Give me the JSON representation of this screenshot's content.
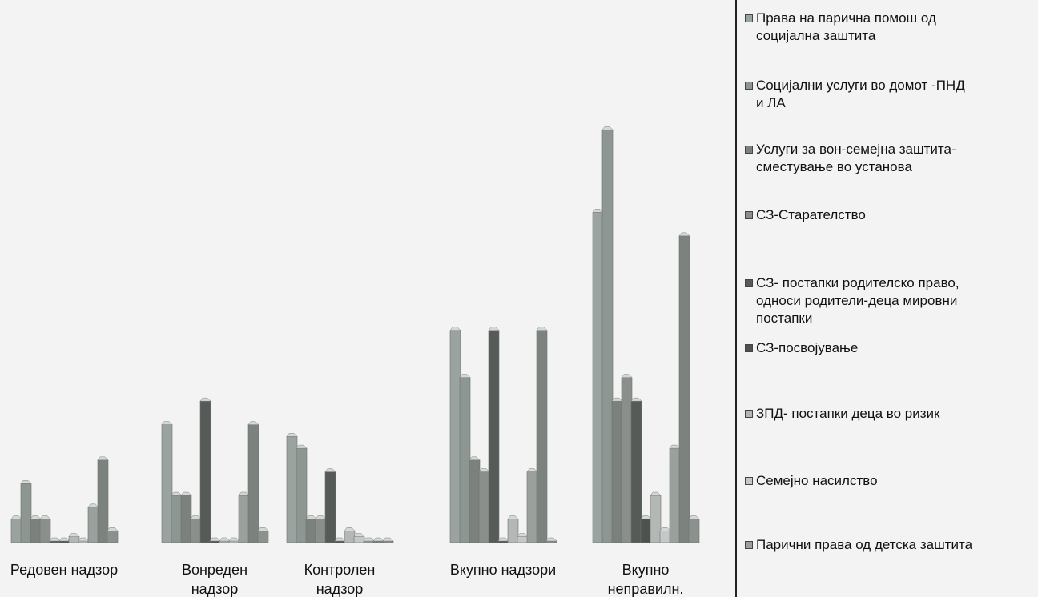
{
  "chart_data": {
    "type": "bar",
    "categories": [
      "Редовен надзор",
      "Вонреден надзор",
      "Контролен надзор",
      "Вкупно надзори",
      "Вкупно неправилн."
    ],
    "series": [
      {
        "name": "Права на парична помош од социјална заштита",
        "color": "#9aa3a0",
        "values": [
          2,
          10,
          9,
          18,
          28
        ]
      },
      {
        "name": "Социјални услуги во домот -ПНД и ЛА",
        "color": "#8d9691",
        "values": [
          5,
          4,
          8,
          14,
          35
        ]
      },
      {
        "name": "Услуги за вон-семејна заштита-сместување во установа",
        "color": "#7b817d",
        "values": [
          2,
          4,
          2,
          7,
          12
        ]
      },
      {
        "name": "СЗ-Старателство",
        "color": "#8a8f8b",
        "values": [
          2,
          2,
          2,
          6,
          14
        ]
      },
      {
        "name": "СЗ- постапки родителско право, односи родители-деца мировни постапки",
        "color": "#565b58",
        "values": [
          0,
          12,
          6,
          18,
          12
        ]
      },
      {
        "name": "СЗ-посвојување",
        "color": "#4e524f",
        "values": [
          0,
          0,
          0,
          0,
          2
        ]
      },
      {
        "name": "ЗПД- постапки деца во ризик",
        "color": "#b3b8b5",
        "values": [
          0.5,
          0,
          1,
          2,
          4
        ]
      },
      {
        "name": "Семејно насилство",
        "color": "#c4c8c6",
        "values": [
          0,
          0,
          0.5,
          0.5,
          1
        ]
      },
      {
        "name": "Парични права од детска заштита",
        "color": "#9aa09c",
        "values": [
          3,
          4,
          0,
          6,
          8
        ]
      },
      {
        "name": "",
        "color": "#7c837f",
        "values": [
          7,
          10,
          0,
          18,
          26
        ]
      },
      {
        "name": "",
        "color": "#8b918d",
        "values": [
          1,
          1,
          0,
          0,
          2
        ]
      }
    ],
    "ylim": [
      0,
      38
    ],
    "grid": false,
    "legend_position": "right"
  },
  "legend": {
    "items": [
      "Права на парична помош од\nсоцијална заштита",
      "Социјални услуги  во домот -ПНД\nи ЛА",
      "Услуги за вон-семејна заштита-\nсместување во установа",
      "СЗ-Старателство",
      "СЗ- постапки родителско право,\nодноси родители-деца мировни\nпостапки",
      "СЗ-посвојување",
      "ЗПД- постапки деца во ризик",
      "Семејно насилство",
      "Парични права од детска заштита"
    ]
  },
  "axis": {
    "category_labels": [
      "Редовен надзор",
      "Вонреден\nнадзор",
      "Контролен\nнадзор",
      "Вкупно надзори",
      "Вкупно\nнеправилн."
    ]
  }
}
